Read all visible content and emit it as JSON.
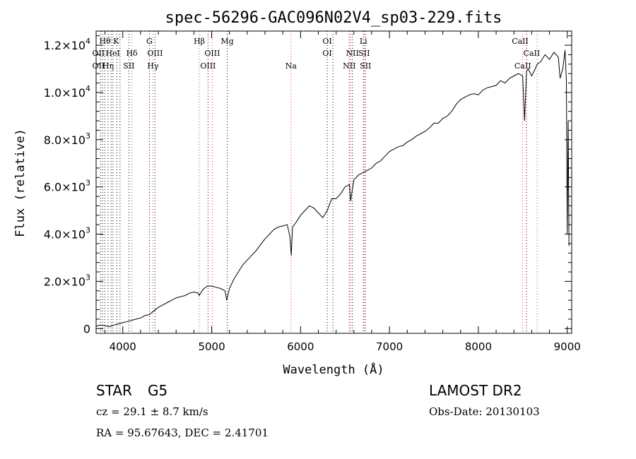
{
  "chart_data": {
    "type": "line",
    "title": "spec-56296-GAC096N02V4_sp03-229.fits",
    "xlabel": "Wavelength (Å)",
    "ylabel": "Flux (relative)",
    "xlim": [
      3700,
      9050
    ],
    "ylim": [
      -200,
      12600
    ],
    "xticks": [
      {
        "value": 4000,
        "label": "4000"
      },
      {
        "value": 5000,
        "label": "5000"
      },
      {
        "value": 6000,
        "label": "6000"
      },
      {
        "value": 7000,
        "label": "7000"
      },
      {
        "value": 8000,
        "label": "8000"
      },
      {
        "value": 9000,
        "label": "9000"
      }
    ],
    "yticks": [
      {
        "value": 0,
        "mant": "0",
        "exp": ""
      },
      {
        "value": 2000,
        "mant": "2.0×10",
        "exp": "3"
      },
      {
        "value": 4000,
        "mant": "4.0×10",
        "exp": "3"
      },
      {
        "value": 6000,
        "mant": "6.0×10",
        "exp": "3"
      },
      {
        "value": 8000,
        "mant": "8.0×10",
        "exp": "3"
      },
      {
        "value": 10000,
        "mant": "1.0×10",
        "exp": "4"
      },
      {
        "value": 12000,
        "mant": "1.2×10",
        "exp": "4"
      }
    ],
    "grid": false,
    "series": [
      {
        "line_color": "#000000",
        "x": [
          3700,
          3750,
          3800,
          3850,
          3900,
          3950,
          4000,
          4050,
          4100,
          4150,
          4200,
          4250,
          4300,
          4350,
          4400,
          4450,
          4500,
          4550,
          4600,
          4650,
          4700,
          4750,
          4800,
          4850,
          4860,
          4900,
          4950,
          5000,
          5050,
          5100,
          5150,
          5170,
          5200,
          5250,
          5300,
          5350,
          5400,
          5450,
          5500,
          5550,
          5600,
          5650,
          5700,
          5750,
          5800,
          5850,
          5880,
          5895,
          5910,
          5950,
          6000,
          6050,
          6100,
          6150,
          6200,
          6250,
          6300,
          6350,
          6400,
          6450,
          6500,
          6550,
          6563,
          6600,
          6650,
          6700,
          6750,
          6800,
          6850,
          6900,
          6950,
          7000,
          7050,
          7100,
          7150,
          7200,
          7250,
          7300,
          7350,
          7400,
          7450,
          7500,
          7550,
          7600,
          7650,
          7700,
          7750,
          7800,
          7850,
          7900,
          7950,
          8000,
          8050,
          8100,
          8150,
          8200,
          8250,
          8300,
          8350,
          8400,
          8450,
          8498,
          8520,
          8542,
          8560,
          8600,
          8640,
          8662,
          8700,
          8750,
          8800,
          8850,
          8900,
          8920,
          8950,
          8975,
          8990,
          9000,
          9010,
          9020
        ],
        "y": [
          100,
          150,
          120,
          80,
          150,
          200,
          250,
          300,
          350,
          400,
          450,
          550,
          600,
          750,
          900,
          1000,
          1100,
          1200,
          1300,
          1350,
          1400,
          1500,
          1550,
          1500,
          1400,
          1650,
          1800,
          1800,
          1750,
          1700,
          1600,
          1200,
          1700,
          2100,
          2400,
          2700,
          2900,
          3100,
          3300,
          3550,
          3800,
          4000,
          4200,
          4300,
          4350,
          4400,
          3900,
          3100,
          4300,
          4500,
          4800,
          5000,
          5200,
          5100,
          4900,
          4700,
          5000,
          5500,
          5500,
          5700,
          6000,
          6100,
          5400,
          6300,
          6500,
          6600,
          6700,
          6800,
          7000,
          7100,
          7300,
          7500,
          7600,
          7700,
          7750,
          7900,
          8000,
          8150,
          8250,
          8350,
          8500,
          8700,
          8700,
          8900,
          9000,
          9200,
          9500,
          9700,
          9800,
          9900,
          9950,
          9900,
          10100,
          10200,
          10250,
          10300,
          10500,
          10400,
          10600,
          10700,
          10800,
          10700,
          8800,
          10900,
          11000,
          10700,
          11000,
          11200,
          11300,
          11600,
          11400,
          11700,
          11500,
          10600,
          11000,
          11800,
          10500,
          4000,
          8800,
          3500
        ]
      }
    ],
    "reference_lines": [
      {
        "x": 3750,
        "color": "#000000"
      },
      {
        "x": 3772,
        "color": "#000000"
      },
      {
        "x": 3798,
        "color": "#000000"
      },
      {
        "x": 3835,
        "color": "#000000"
      },
      {
        "x": 3869,
        "color": "#000000"
      },
      {
        "x": 3889,
        "color": "#000000"
      },
      {
        "x": 3934,
        "color": "#000000"
      },
      {
        "x": 3969,
        "color": "#000000"
      },
      {
        "x": 4069,
        "color": "#000000"
      },
      {
        "x": 4102,
        "color": "#e8392f"
      },
      {
        "x": 4300,
        "color": "#000000"
      },
      {
        "x": 4340,
        "color": "#e8392f"
      },
      {
        "x": 4363,
        "color": "#000000"
      },
      {
        "x": 4861,
        "color": "#e8392f"
      },
      {
        "x": 4959,
        "color": "#000000"
      },
      {
        "x": 5007,
        "color": "#e8392f"
      },
      {
        "x": 5175,
        "color": "#000000"
      },
      {
        "x": 5893,
        "color": "#e8392f"
      },
      {
        "x": 6300,
        "color": "#000000"
      },
      {
        "x": 6364,
        "color": "#000000"
      },
      {
        "x": 6548,
        "color": "#000000"
      },
      {
        "x": 6563,
        "color": "#e8392f"
      },
      {
        "x": 6583,
        "color": "#000000"
      },
      {
        "x": 6707,
        "color": "#000000"
      },
      {
        "x": 6716,
        "color": "#e8392f"
      },
      {
        "x": 6731,
        "color": "#000000"
      },
      {
        "x": 8498,
        "color": "#e8392f"
      },
      {
        "x": 8542,
        "color": "#000000"
      },
      {
        "x": 8662,
        "color": "#e8392f"
      }
    ],
    "annotations": [
      {
        "text": "Hθ",
        "x": 3800,
        "row": 1
      },
      {
        "text": "K",
        "x": 3925,
        "row": 1
      },
      {
        "text": "G",
        "x": 4300,
        "row": 1
      },
      {
        "text": "Hβ",
        "x": 4861,
        "row": 1
      },
      {
        "text": "Mg",
        "x": 5175,
        "row": 1
      },
      {
        "text": "OI",
        "x": 6300,
        "row": 1
      },
      {
        "text": "Li",
        "x": 6707,
        "row": 1
      },
      {
        "text": "CaII",
        "x": 8470,
        "row": 1
      },
      {
        "text": "OII",
        "x": 3727,
        "row": 2
      },
      {
        "text": "HeI",
        "x": 3888,
        "row": 2
      },
      {
        "text": "OIII",
        "x": 4363,
        "row": 2
      },
      {
        "text": "OIII",
        "x": 5007,
        "row": 2
      },
      {
        "text": "OI",
        "x": 6300,
        "row": 2
      },
      {
        "text": "NII",
        "x": 6583,
        "row": 2
      },
      {
        "text": "SII",
        "x": 6716,
        "row": 2
      },
      {
        "text": "CaII",
        "x": 8600,
        "row": 2
      },
      {
        "text": "OII",
        "x": 3727,
        "row": 3
      },
      {
        "text": "Hη",
        "x": 3835,
        "row": 3
      },
      {
        "text": "SII",
        "x": 4069,
        "row": 3
      },
      {
        "text": "Hγ",
        "x": 4340,
        "row": 3
      },
      {
        "text": "OIII",
        "x": 4959,
        "row": 3
      },
      {
        "text": "Na",
        "x": 5893,
        "row": 3
      },
      {
        "text": "NII",
        "x": 6548,
        "row": 3
      },
      {
        "text": "SII",
        "x": 6731,
        "row": 3
      },
      {
        "text": "CaII",
        "x": 8500,
        "row": 3
      },
      {
        "text": "Hδ",
        "x": 4102,
        "row": 2
      }
    ]
  },
  "info": {
    "class": "STAR",
    "subclass": "G5",
    "survey": "LAMOST DR2",
    "cz": "cz = 29.1 ± 8.7 km/s",
    "obs_date": "Obs-Date: 20130103",
    "coords": "RA =  95.67643, DEC =   2.41701"
  }
}
